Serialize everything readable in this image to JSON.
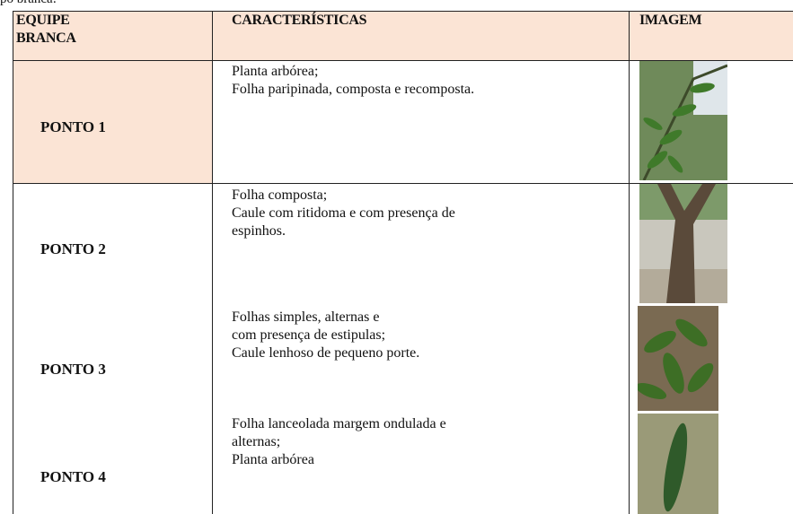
{
  "header_note": "po branca:",
  "table": {
    "headers": [
      "EQUIPE BRANCA",
      "CARACTERÍSTICAS",
      "IMAGEM"
    ],
    "rows": [
      {
        "label": "PONTO 1",
        "lines": [
          "Planta arbórea;",
          "Folha paripinada, composta e recomposta."
        ]
      },
      {
        "label": "PONTO 2",
        "lines": [
          "Folha composta;",
          "Caule com ritidoma e com presença de",
          "espinhos."
        ]
      },
      {
        "label": "PONTO 3",
        "lines": [
          "Folhas simples, alternas e",
          "com presença de estipulas;",
          "Caule lenhoso de pequeno porte."
        ]
      },
      {
        "label": "PONTO 4",
        "lines": [
          "Folha lanceolada margem ondulada e",
          "alternas;",
          "Planta arbórea"
        ]
      }
    ]
  }
}
